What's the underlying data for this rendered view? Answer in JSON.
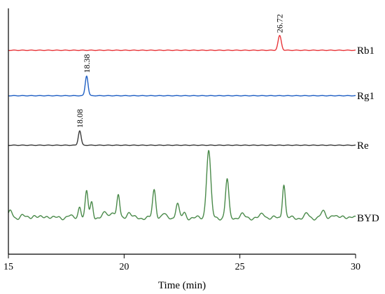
{
  "chart_data": {
    "type": "line",
    "xlabel": "Time (min)",
    "xlim": [
      15,
      30
    ],
    "x_ticks": [
      15,
      20,
      25,
      30
    ],
    "grid": false,
    "series": [
      {
        "name": "Rb1",
        "color": "#e8373b",
        "baseline": 1.9,
        "peaks": [
          {
            "x": 26.72,
            "h": 0.55,
            "w": 0.07
          }
        ],
        "peak_labels": [
          {
            "x": 26.72,
            "text": "26.72"
          }
        ]
      },
      {
        "name": "Rg1",
        "color": "#1f5fc4",
        "baseline": 1.45,
        "peaks": [
          {
            "x": 18.38,
            "h": 0.75,
            "w": 0.06
          }
        ],
        "peak_labels": [
          {
            "x": 18.38,
            "text": "18.38"
          }
        ]
      },
      {
        "name": "Re",
        "color": "#3a3a3a",
        "baseline": 1.0,
        "peaks": [
          {
            "x": 18.08,
            "h": 0.55,
            "w": 0.06
          }
        ],
        "peak_labels": [
          {
            "x": 18.08,
            "text": "18.08"
          }
        ]
      },
      {
        "name": "BYD",
        "color": "#4a8a4a",
        "baseline": 0.0,
        "peaks": [
          {
            "x": 15.1,
            "h": 0.25,
            "w": 0.08
          },
          {
            "x": 15.6,
            "h": 0.08,
            "w": 0.1
          },
          {
            "x": 16.1,
            "h": 0.1,
            "w": 0.1
          },
          {
            "x": 16.7,
            "h": 0.07,
            "w": 0.12
          },
          {
            "x": 17.6,
            "h": 0.08,
            "w": 0.1
          },
          {
            "x": 18.08,
            "h": 0.45,
            "w": 0.06
          },
          {
            "x": 18.38,
            "h": 1.0,
            "w": 0.06
          },
          {
            "x": 18.6,
            "h": 0.6,
            "w": 0.06
          },
          {
            "x": 19.2,
            "h": 0.2,
            "w": 0.1
          },
          {
            "x": 19.5,
            "h": 0.25,
            "w": 0.08
          },
          {
            "x": 19.75,
            "h": 0.85,
            "w": 0.06
          },
          {
            "x": 20.2,
            "h": 0.2,
            "w": 0.1
          },
          {
            "x": 21.3,
            "h": 1.05,
            "w": 0.07
          },
          {
            "x": 21.7,
            "h": 0.15,
            "w": 0.08
          },
          {
            "x": 22.3,
            "h": 0.55,
            "w": 0.07
          },
          {
            "x": 22.6,
            "h": 0.18,
            "w": 0.07
          },
          {
            "x": 23.65,
            "h": 2.55,
            "w": 0.09
          },
          {
            "x": 24.45,
            "h": 1.45,
            "w": 0.07
          },
          {
            "x": 25.1,
            "h": 0.12,
            "w": 0.1
          },
          {
            "x": 26.0,
            "h": 0.15,
            "w": 0.1
          },
          {
            "x": 26.9,
            "h": 1.3,
            "w": 0.06
          },
          {
            "x": 27.9,
            "h": 0.15,
            "w": 0.08
          },
          {
            "x": 28.6,
            "h": 0.22,
            "w": 0.1
          },
          {
            "x": 29.0,
            "h": 0.12,
            "w": 0.08
          },
          {
            "x": 29.5,
            "h": 0.08,
            "w": 0.1
          }
        ]
      }
    ]
  }
}
